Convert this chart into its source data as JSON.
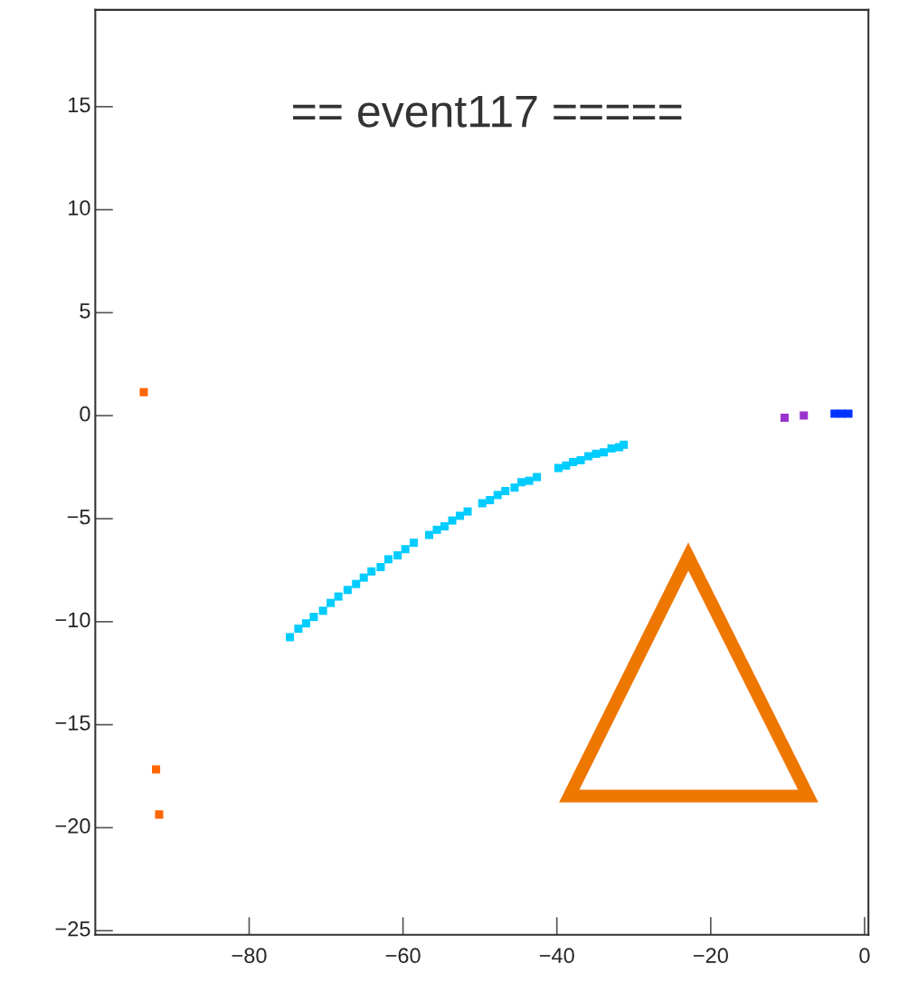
{
  "chart_data": {
    "type": "scatter",
    "title": "== event117 =====",
    "marker": "square",
    "grid": false,
    "xlim": [
      -100,
      0.5
    ],
    "ylim": [
      -25.2,
      19.7
    ],
    "xticks": [
      -80,
      -60,
      -40,
      -20,
      0
    ],
    "yticks": [
      -25,
      -20,
      -15,
      -10,
      -5,
      0,
      5,
      10,
      15
    ],
    "series": [
      {
        "color": "#00ccff",
        "x": [
          -74.7,
          -73.6,
          -72.6,
          -71.6,
          -70.4,
          -69.4,
          -68.4,
          -67.2,
          -66.1,
          -65.1,
          -64.1,
          -62.9,
          -61.9,
          -60.7,
          -59.7,
          -58.6,
          -56.6,
          -55.6,
          -54.6,
          -53.6,
          -52.6,
          -51.6,
          -49.7,
          -48.7,
          -47.7,
          -46.7,
          -45.5,
          -44.6,
          -43.6,
          -42.6,
          -39.8,
          -38.8,
          -37.9,
          -36.9,
          -35.9,
          -34.9,
          -33.9,
          -32.9,
          -31.9,
          -31.3
        ],
        "values": [
          -10.75,
          -10.34,
          -10.08,
          -9.77,
          -9.47,
          -9.09,
          -8.78,
          -8.46,
          -8.17,
          -7.86,
          -7.56,
          -7.35,
          -6.97,
          -6.78,
          -6.48,
          -6.17,
          -5.79,
          -5.54,
          -5.37,
          -5.09,
          -4.86,
          -4.65,
          -4.25,
          -4.1,
          -3.85,
          -3.66,
          -3.49,
          -3.23,
          -3.16,
          -2.98,
          -2.54,
          -2.42,
          -2.25,
          -2.16,
          -1.97,
          -1.85,
          -1.78,
          -1.59,
          -1.53,
          -1.41
        ]
      },
      {
        "color": "#ff6600",
        "x": [
          -93.7,
          -92.1,
          -91.7
        ],
        "values": [
          1.14,
          -17.17,
          -19.36
        ]
      },
      {
        "color": "#9933cc",
        "x": [
          -10.4,
          -7.9
        ],
        "values": [
          -0.1,
          0.01
        ]
      },
      {
        "color": "#0033ff",
        "x": [
          -3.9,
          -3.0,
          -2.1
        ],
        "values": [
          0.1,
          0.1,
          0.1
        ]
      }
    ]
  }
}
